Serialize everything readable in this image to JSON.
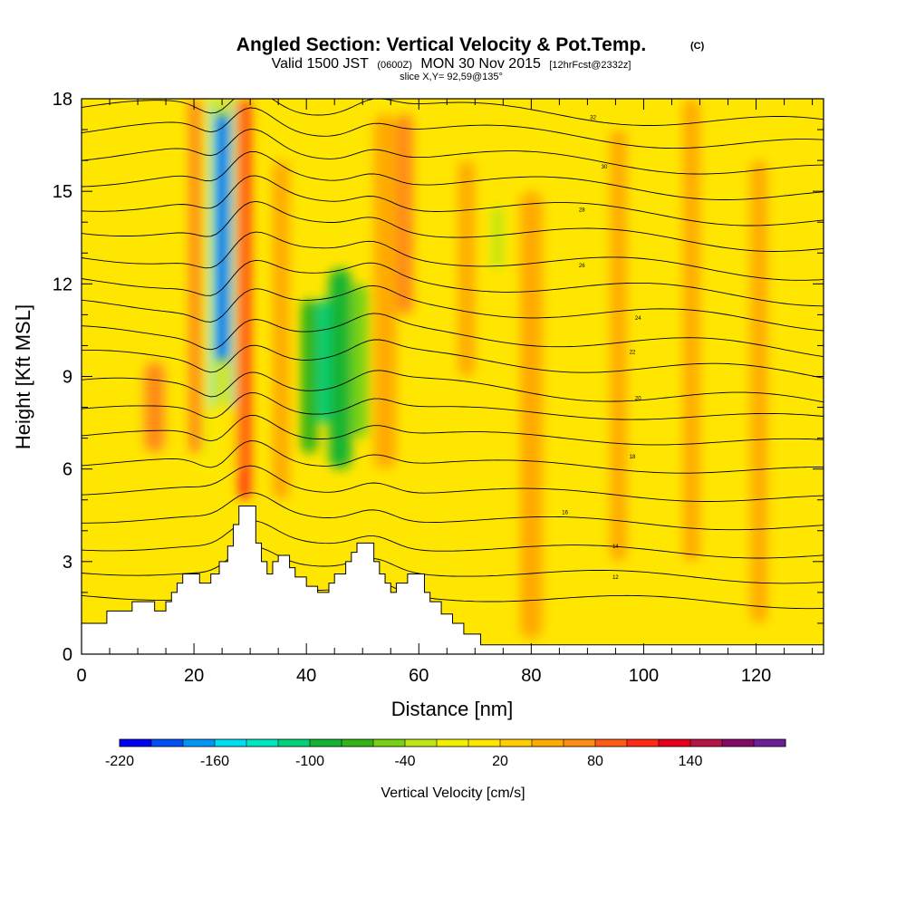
{
  "chart_data": {
    "type": "heatmap",
    "title": "Angled Section: Vertical Velocity & Pot.Temp.",
    "title_suffix": "(C)",
    "subtitle_parts": [
      "Valid 1500 JST",
      "(0600Z)",
      "MON 30 Nov 2015",
      "[12hrFcst@2332z]"
    ],
    "slice_label": "slice X,Y= 92,59@135°",
    "xlabel": "Distance [nm]",
    "ylabel": "Height [Kft MSL]",
    "xlim": [
      0,
      132
    ],
    "ylim": [
      0,
      18
    ],
    "x_ticks": [
      "0",
      "20",
      "40",
      "60",
      "80",
      "100",
      "120"
    ],
    "y_ticks": [
      "0",
      "3",
      "6",
      "9",
      "12",
      "15",
      "18"
    ],
    "colorbar": {
      "label": "Vertical Velocity [cm/s]",
      "ticks": [
        "-220",
        "-160",
        "-100",
        "-40",
        "20",
        "80",
        "140"
      ],
      "colors": [
        "#0000f0",
        "#0050f5",
        "#0096f5",
        "#00dcf0",
        "#00e6be",
        "#00d278",
        "#14b432",
        "#32b414",
        "#78d214",
        "#bee614",
        "#f0f000",
        "#ffe600",
        "#ffcd00",
        "#ffaa00",
        "#ff8c14",
        "#ff5a14",
        "#ff2814",
        "#e6001e",
        "#b41446",
        "#820a64",
        "#6e1e96"
      ]
    },
    "velocity_cells": [
      {
        "x": [
          4,
          18
        ],
        "y": [
          1.5,
          18
        ],
        "value": 10
      },
      {
        "x": [
          11,
          15
        ],
        "y": [
          6.5,
          9.5
        ],
        "value": 70
      },
      {
        "x": [
          19,
          21.5
        ],
        "y": [
          6.5,
          18
        ],
        "value": 70
      },
      {
        "x": [
          21.5,
          23
        ],
        "y": [
          6,
          18
        ],
        "value": -10
      },
      {
        "x": [
          23,
          24
        ],
        "y": [
          8,
          18
        ],
        "value": -130
      },
      {
        "x": [
          24,
          26
        ],
        "y": [
          9.5,
          17.5
        ],
        "value": -190
      },
      {
        "x": [
          26,
          27
        ],
        "y": [
          8,
          18
        ],
        "value": -130
      },
      {
        "x": [
          27,
          28
        ],
        "y": [
          6,
          18
        ],
        "value": 30
      },
      {
        "x": [
          28,
          30
        ],
        "y": [
          5,
          18
        ],
        "value": 110
      },
      {
        "x": [
          34,
          37
        ],
        "y": [
          5,
          16
        ],
        "value": 50
      },
      {
        "x": [
          39,
          42
        ],
        "y": [
          6.5,
          11.5
        ],
        "value": -70
      },
      {
        "x": [
          42,
          44
        ],
        "y": [
          7.5,
          11.5
        ],
        "value": -110
      },
      {
        "x": [
          44,
          48
        ],
        "y": [
          6,
          12.5
        ],
        "value": -90
      },
      {
        "x": [
          48,
          51
        ],
        "y": [
          7,
          12
        ],
        "value": -50
      },
      {
        "x": [
          52,
          56
        ],
        "y": [
          6,
          17.5
        ],
        "value": 50
      },
      {
        "x": [
          56,
          59
        ],
        "y": [
          11,
          17.5
        ],
        "value": 70
      },
      {
        "x": [
          67,
          70
        ],
        "y": [
          9,
          16
        ],
        "value": 40
      },
      {
        "x": [
          73,
          75
        ],
        "y": [
          12.5,
          14.5
        ],
        "value": -30
      },
      {
        "x": [
          78,
          82
        ],
        "y": [
          0.5,
          15
        ],
        "value": 40
      },
      {
        "x": [
          94,
          97
        ],
        "y": [
          3,
          17
        ],
        "value": 40
      },
      {
        "x": [
          107,
          110
        ],
        "y": [
          3,
          18
        ],
        "value": 40
      },
      {
        "x": [
          119,
          122
        ],
        "y": [
          1,
          16
        ],
        "value": 40
      }
    ],
    "terrain_heights_kft": [
      {
        "x": 0,
        "h": 1
      },
      {
        "x": 4.5,
        "h": 1
      },
      {
        "x": 4.5,
        "h": 1.4
      },
      {
        "x": 9,
        "h": 1.4
      },
      {
        "x": 9,
        "h": 1.7
      },
      {
        "x": 13,
        "h": 1.7
      },
      {
        "x": 13,
        "h": 1.4
      },
      {
        "x": 15,
        "h": 1.4
      },
      {
        "x": 15,
        "h": 1.7
      },
      {
        "x": 16,
        "h": 1.7
      },
      {
        "x": 16,
        "h": 2
      },
      {
        "x": 17,
        "h": 2
      },
      {
        "x": 17,
        "h": 2.3
      },
      {
        "x": 18,
        "h": 2.3
      },
      {
        "x": 18,
        "h": 2.6
      },
      {
        "x": 19,
        "h": 2.6
      },
      {
        "x": 19,
        "h": 2.6
      },
      {
        "x": 21,
        "h": 2.6
      },
      {
        "x": 21,
        "h": 2.3
      },
      {
        "x": 23,
        "h": 2.3
      },
      {
        "x": 23,
        "h": 2.6
      },
      {
        "x": 24.5,
        "h": 2.6
      },
      {
        "x": 24.5,
        "h": 3
      },
      {
        "x": 26,
        "h": 3
      },
      {
        "x": 26,
        "h": 3.5
      },
      {
        "x": 27,
        "h": 3.5
      },
      {
        "x": 27,
        "h": 4.2
      },
      {
        "x": 28,
        "h": 4.2
      },
      {
        "x": 28,
        "h": 4.8
      },
      {
        "x": 31,
        "h": 4.8
      },
      {
        "x": 31,
        "h": 3.6
      },
      {
        "x": 32,
        "h": 3.6
      },
      {
        "x": 32,
        "h": 3
      },
      {
        "x": 33,
        "h": 3
      },
      {
        "x": 33,
        "h": 2.6
      },
      {
        "x": 34,
        "h": 2.6
      },
      {
        "x": 34,
        "h": 3
      },
      {
        "x": 35,
        "h": 3
      },
      {
        "x": 35,
        "h": 3.2
      },
      {
        "x": 37,
        "h": 3.2
      },
      {
        "x": 37,
        "h": 2.8
      },
      {
        "x": 38,
        "h": 2.8
      },
      {
        "x": 38,
        "h": 2.5
      },
      {
        "x": 40,
        "h": 2.5
      },
      {
        "x": 40,
        "h": 2.2
      },
      {
        "x": 42,
        "h": 2.2
      },
      {
        "x": 42,
        "h": 2
      },
      {
        "x": 44,
        "h": 2
      },
      {
        "x": 44,
        "h": 2.3
      },
      {
        "x": 45,
        "h": 2.3
      },
      {
        "x": 45,
        "h": 2.6
      },
      {
        "x": 47,
        "h": 2.6
      },
      {
        "x": 47,
        "h": 3
      },
      {
        "x": 48,
        "h": 3
      },
      {
        "x": 48,
        "h": 3.3
      },
      {
        "x": 49,
        "h": 3.3
      },
      {
        "x": 49,
        "h": 3.6
      },
      {
        "x": 52,
        "h": 3.6
      },
      {
        "x": 52,
        "h": 3
      },
      {
        "x": 53,
        "h": 3
      },
      {
        "x": 53,
        "h": 2.6
      },
      {
        "x": 54,
        "h": 2.6
      },
      {
        "x": 54,
        "h": 2.3
      },
      {
        "x": 55,
        "h": 2.3
      },
      {
        "x": 55,
        "h": 2
      },
      {
        "x": 56,
        "h": 2
      },
      {
        "x": 56,
        "h": 2.3
      },
      {
        "x": 58,
        "h": 2.3
      },
      {
        "x": 58,
        "h": 2.6
      },
      {
        "x": 61,
        "h": 2.6
      },
      {
        "x": 61,
        "h": 2
      },
      {
        "x": 62,
        "h": 2
      },
      {
        "x": 62,
        "h": 1.7
      },
      {
        "x": 64,
        "h": 1.7
      },
      {
        "x": 64,
        "h": 1.3
      },
      {
        "x": 66,
        "h": 1.3
      },
      {
        "x": 66,
        "h": 1
      },
      {
        "x": 68,
        "h": 1
      },
      {
        "x": 68,
        "h": 0.65
      },
      {
        "x": 71,
        "h": 0.65
      },
      {
        "x": 71,
        "h": 0.3
      },
      {
        "x": 132,
        "h": 0.3
      }
    ],
    "isentrope_base_kft": [
      1.9,
      2.7,
      3.5,
      4.4,
      5.3,
      6.2,
      7.1,
      7.9,
      8.7,
      9.6,
      10.4,
      11.3,
      12.1,
      12.9,
      13.8,
      14.6,
      15.4,
      16.2,
      17.0,
      17.7
    ],
    "isentrope_labels": [
      {
        "x": 95,
        "y": 2.5,
        "text": "12"
      },
      {
        "x": 95,
        "y": 3.5,
        "text": "14"
      },
      {
        "x": 86,
        "y": 4.6,
        "text": "16"
      },
      {
        "x": 98,
        "y": 6.4,
        "text": "18"
      },
      {
        "x": 99,
        "y": 8.3,
        "text": "20"
      },
      {
        "x": 98,
        "y": 9.8,
        "text": "22"
      },
      {
        "x": 99,
        "y": 10.9,
        "text": "24"
      },
      {
        "x": 89,
        "y": 12.6,
        "text": "26"
      },
      {
        "x": 89,
        "y": 14.4,
        "text": "28"
      },
      {
        "x": 93,
        "y": 15.8,
        "text": "30"
      },
      {
        "x": 91,
        "y": 17.4,
        "text": "32"
      }
    ]
  }
}
